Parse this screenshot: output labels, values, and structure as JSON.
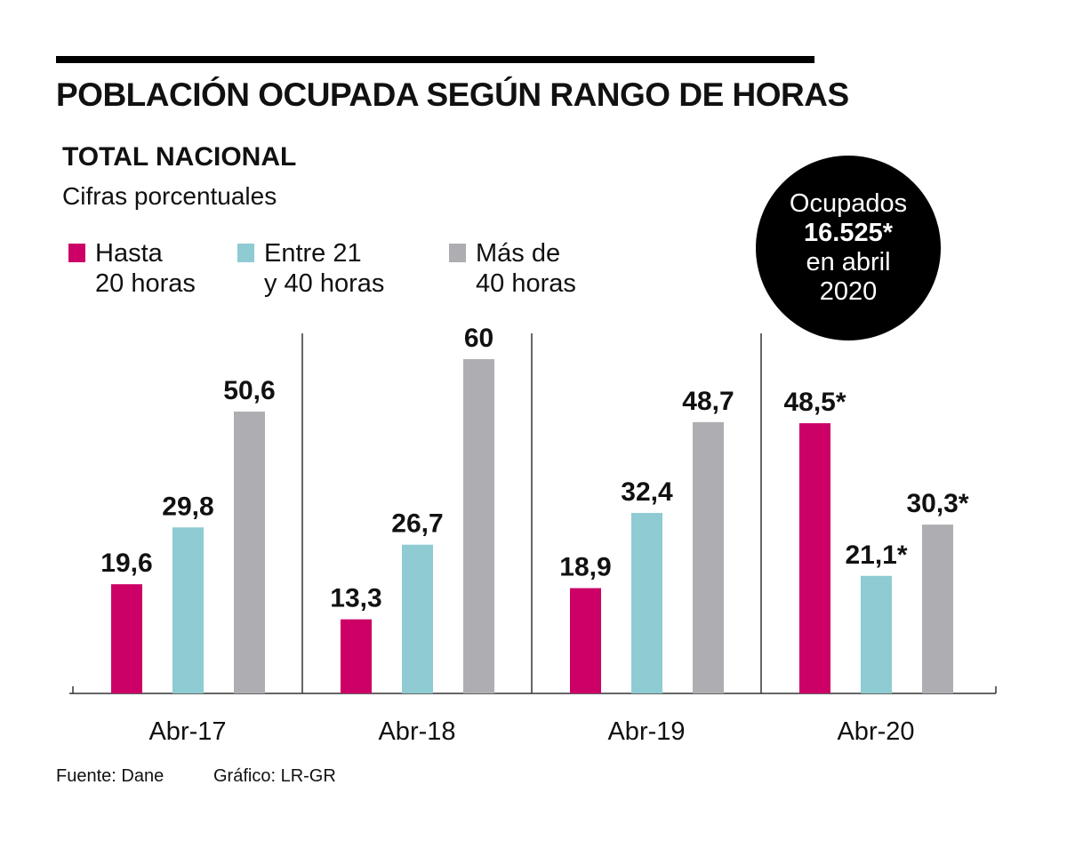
{
  "header": {
    "title": "POBLACIÓN OCUPADA SEGÚN RANGO DE HORAS",
    "subtitle": "TOTAL NACIONAL",
    "caption": "Cifras porcentuales"
  },
  "badge": {
    "line1": "Ocupados",
    "value": "16.525*",
    "line3": "en abril",
    "line4": "2020",
    "color": "#000000"
  },
  "footer": {
    "source": "Fuente: Dane",
    "credit": "Gráfico: LR-GR"
  },
  "chart_data": {
    "type": "bar",
    "title": "POBLACIÓN OCUPADA SEGÚN RANGO DE HORAS",
    "subtitle": "TOTAL NACIONAL",
    "ylabel": "",
    "xlabel": "",
    "ylim": [
      0,
      60
    ],
    "grid": false,
    "legend_position": "top-left",
    "categories": [
      "Abr-17",
      "Abr-18",
      "Abr-19",
      "Abr-20"
    ],
    "series": [
      {
        "name": "Hasta\n20 horas",
        "color": "#cc0066",
        "values": [
          19.6,
          13.3,
          18.9,
          48.5
        ],
        "labels": [
          "19,6",
          "13,3",
          "18,9",
          "48,5*"
        ]
      },
      {
        "name": "Entre 21\ny 40 horas",
        "color": "#8ecbd3",
        "values": [
          29.8,
          26.7,
          32.4,
          21.1
        ],
        "labels": [
          "29,8",
          "26,7",
          "32,4",
          "21,1*"
        ]
      },
      {
        "name": "Más de\n40 horas",
        "color": "#aeadb2",
        "values": [
          50.6,
          60,
          48.7,
          30.3
        ],
        "labels": [
          "50,6",
          "60",
          "48,7",
          "30,3*"
        ]
      }
    ]
  }
}
